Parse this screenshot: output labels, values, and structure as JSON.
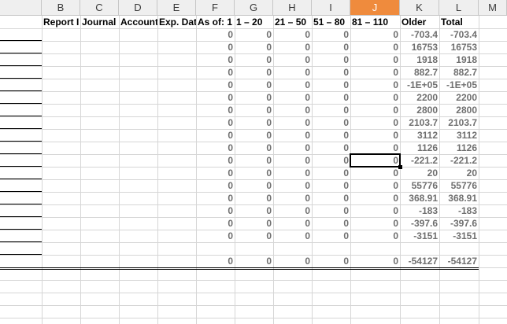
{
  "columns": [
    "B",
    "C",
    "D",
    "E",
    "F",
    "G",
    "H",
    "I",
    "J",
    "K",
    "L",
    "M"
  ],
  "selected_column": "J",
  "header_row": [
    "Report I",
    "Journal",
    "Account",
    "Exp. Dat",
    "As of: 1",
    "1 – 20",
    "21 – 50",
    "51 – 80",
    "81 – 110",
    "Older",
    "Total"
  ],
  "rows": [
    [
      "0",
      "0",
      "0",
      "0",
      "0",
      "-703.4",
      "-703.4"
    ],
    [
      "0",
      "0",
      "0",
      "0",
      "0",
      "16753",
      "16753"
    ],
    [
      "0",
      "0",
      "0",
      "0",
      "0",
      "1918",
      "1918"
    ],
    [
      "0",
      "0",
      "0",
      "0",
      "0",
      "882.7",
      "882.7"
    ],
    [
      "0",
      "0",
      "0",
      "0",
      "0",
      "-1E+05",
      "-1E+05"
    ],
    [
      "0",
      "0",
      "0",
      "0",
      "0",
      "2200",
      "2200"
    ],
    [
      "0",
      "0",
      "0",
      "0",
      "0",
      "2800",
      "2800"
    ],
    [
      "0",
      "0",
      "0",
      "0",
      "0",
      "2103.7",
      "2103.7"
    ],
    [
      "0",
      "0",
      "0",
      "0",
      "0",
      "3112",
      "3112"
    ],
    [
      "0",
      "0",
      "0",
      "0",
      "0",
      "1126",
      "1126"
    ],
    [
      "0",
      "0",
      "0",
      "0",
      "0",
      "-221.2",
      "-221.2"
    ],
    [
      "0",
      "0",
      "0",
      "0",
      "0",
      "20",
      "20"
    ],
    [
      "0",
      "0",
      "0",
      "0",
      "0",
      "55776",
      "55776"
    ],
    [
      "0",
      "0",
      "0",
      "0",
      "0",
      "368.91",
      "368.91"
    ],
    [
      "0",
      "0",
      "0",
      "0",
      "0",
      "-183",
      "-183"
    ],
    [
      "0",
      "0",
      "0",
      "0",
      "0",
      "-397.6",
      "-397.6"
    ],
    [
      "0",
      "0",
      "0",
      "0",
      "0",
      "-3151",
      "-3151"
    ]
  ],
  "totals": [
    "0",
    "0",
    "0",
    "0",
    "0",
    "-54127",
    "-54127"
  ],
  "active_cell_row": 10,
  "active_cell_col": 4
}
